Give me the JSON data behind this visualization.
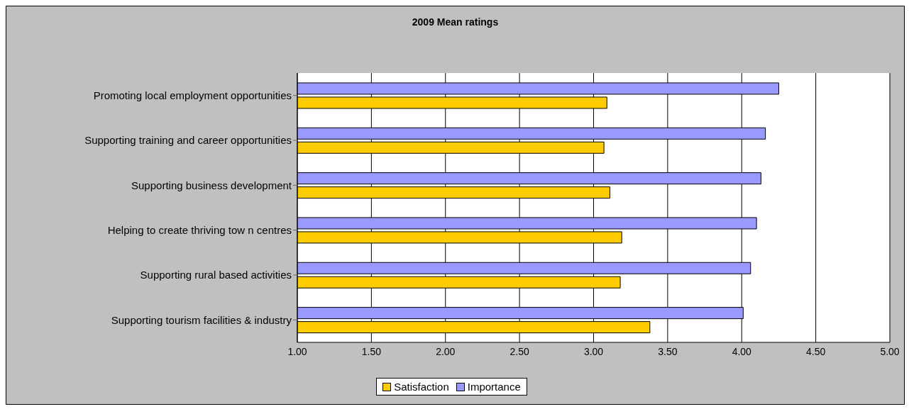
{
  "chart_data": {
    "type": "bar",
    "orientation": "horizontal",
    "title": "2009 Mean ratings",
    "categories": [
      "Promoting local employment opportunities",
      "Supporting training and career opportunities",
      "Supporting business development",
      "Helping to create thriving tow n centres",
      "Supporting rural based activities",
      "Supporting tourism facilities & industry"
    ],
    "series": [
      {
        "name": "Satisfaction",
        "color": "#ffcc00",
        "values": [
          3.09,
          3.07,
          3.11,
          3.19,
          3.18,
          3.38
        ]
      },
      {
        "name": "Importance",
        "color": "#9999ff",
        "values": [
          4.25,
          4.16,
          4.13,
          4.1,
          4.06,
          4.01
        ]
      }
    ],
    "xlim": [
      1,
      5
    ],
    "xticks": [
      {
        "value": 1,
        "label": "1.00"
      },
      {
        "value": 1.5,
        "label": "1.50"
      },
      {
        "value": 2,
        "label": "2.00"
      },
      {
        "value": 2.5,
        "label": "2.50"
      },
      {
        "value": 3,
        "label": "3.00"
      },
      {
        "value": 3.5,
        "label": "3.50"
      },
      {
        "value": 4,
        "label": "4.00"
      },
      {
        "value": 4.5,
        "label": "4.50"
      },
      {
        "value": 5,
        "label": "5.00"
      }
    ],
    "grid": "x",
    "legend": "bottom"
  }
}
